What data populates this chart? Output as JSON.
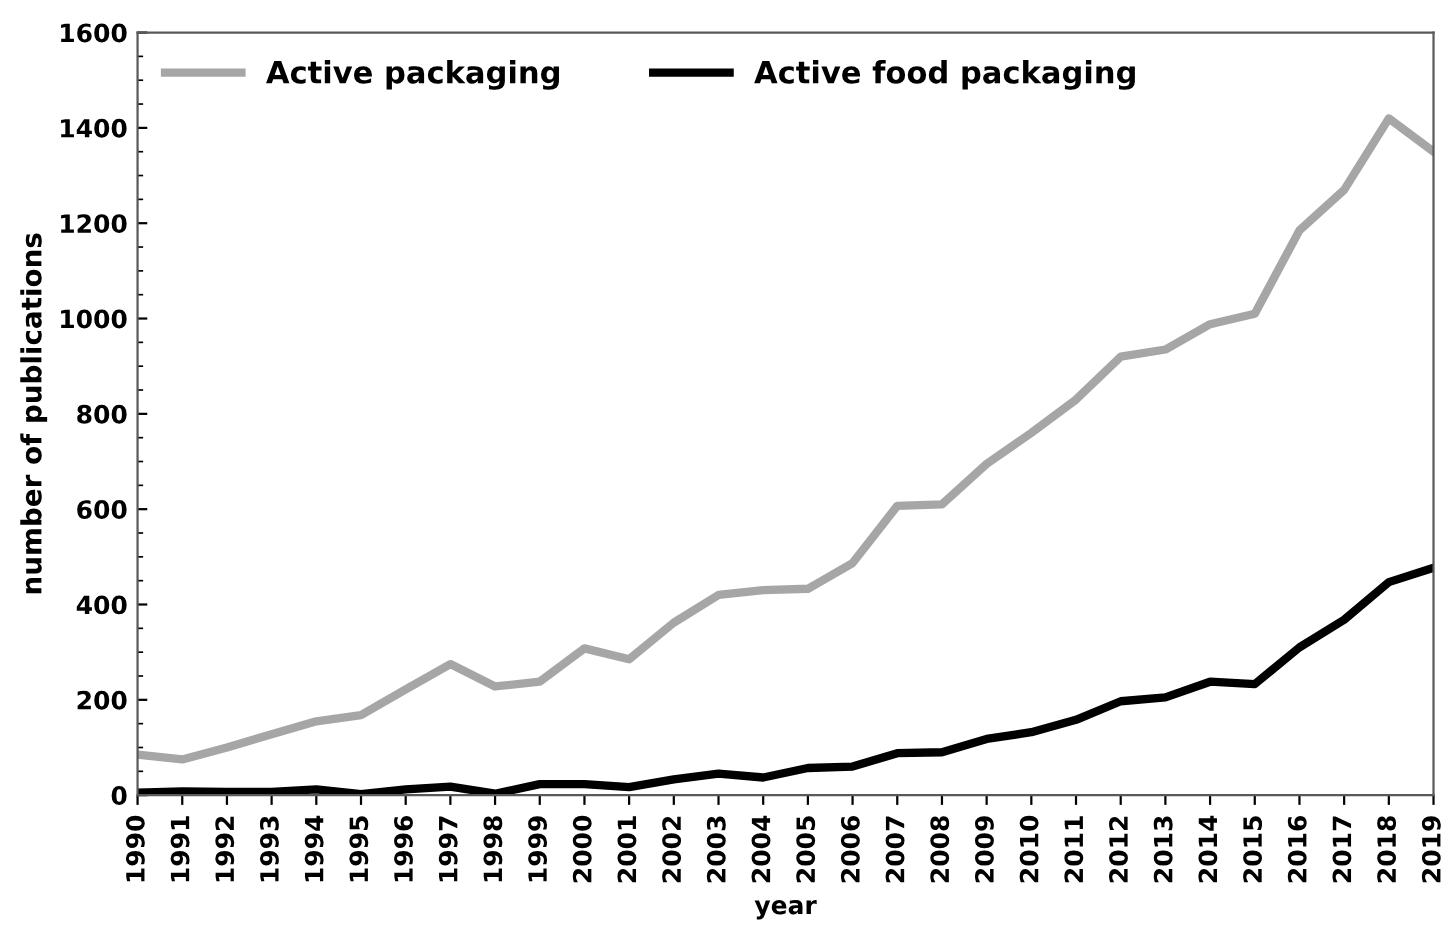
{
  "chart_data": {
    "type": "line",
    "xlabel": "year",
    "ylabel": "number of publications",
    "x": [
      1990,
      1991,
      1992,
      1993,
      1994,
      1995,
      1996,
      1997,
      1998,
      1999,
      2000,
      2001,
      2002,
      2003,
      2004,
      2005,
      2006,
      2007,
      2008,
      2009,
      2010,
      2011,
      2012,
      2013,
      2014,
      2015,
      2016,
      2017,
      2018,
      2019
    ],
    "series": [
      {
        "name": "Active packaging",
        "color": "#a6a6a6",
        "values": [
          85,
          75,
          100,
          128,
          155,
          168,
          222,
          275,
          228,
          238,
          308,
          285,
          362,
          420,
          430,
          433,
          487,
          607,
          610,
          695,
          760,
          830,
          920,
          935,
          988,
          1010,
          1185,
          1270,
          1420,
          1350
        ]
      },
      {
        "name": "Active food packaging",
        "color": "#000000",
        "values": [
          5,
          8,
          7,
          7,
          12,
          2,
          12,
          18,
          3,
          23,
          23,
          17,
          33,
          45,
          37,
          57,
          60,
          88,
          90,
          118,
          132,
          158,
          197,
          205,
          238,
          233,
          310,
          368,
          447,
          477
        ]
      }
    ],
    "xlim": [
      1990,
      2019
    ],
    "xticks": [
      1990,
      1991,
      1992,
      1993,
      1994,
      1995,
      1996,
      1997,
      1998,
      1999,
      2000,
      2001,
      2002,
      2003,
      2004,
      2005,
      2006,
      2007,
      2008,
      2009,
      2010,
      2011,
      2012,
      2013,
      2014,
      2015,
      2016,
      2017,
      2018,
      2019
    ],
    "ylim": [
      0,
      1600
    ],
    "yticks": [
      0,
      200,
      400,
      600,
      800,
      1000,
      1200,
      1400,
      1600
    ],
    "legend": "top left",
    "marker": "none",
    "line_style": "solid",
    "grid": false
  }
}
